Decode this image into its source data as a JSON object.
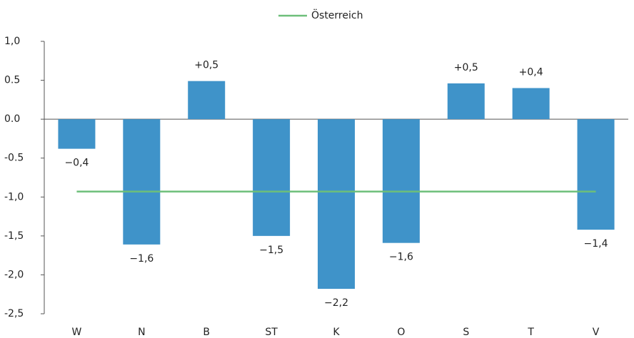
{
  "chart_data": {
    "type": "bar",
    "categories": [
      "W",
      "N",
      "B",
      "ST",
      "K",
      "O",
      "S",
      "T",
      "V"
    ],
    "bars": {
      "color": "#3f93c9",
      "values": [
        -0.38,
        -1.61,
        0.49,
        -1.5,
        -2.18,
        -1.59,
        0.46,
        0.4,
        -1.42
      ],
      "value_labels": [
        "−0,4",
        "−1,6",
        "+0,5",
        "−1,5",
        "−2,2",
        "−1,6",
        "+0,5",
        "+0,4",
        "−1,4"
      ]
    },
    "line": {
      "name": "Österreich",
      "color": "#6dbf7a",
      "values": [
        -0.93,
        -0.93,
        -0.93,
        -0.93,
        -0.93,
        -0.93,
        -0.93,
        -0.93,
        -0.93
      ]
    },
    "ylim": [
      -2.5,
      1.0
    ],
    "yticks": [
      {
        "value": 1.0,
        "label": "1,0"
      },
      0.5,
      {
        "value": 0,
        "label": "0.0"
      },
      -0.5,
      {
        "value": -1.0,
        "label": "-1,0"
      },
      {
        "value": -1.5,
        "label": "-1,5"
      },
      {
        "value": -2.0,
        "label": "-2,0"
      },
      {
        "value": -2.5,
        "label": "-2,5"
      }
    ],
    "legend": "top"
  }
}
